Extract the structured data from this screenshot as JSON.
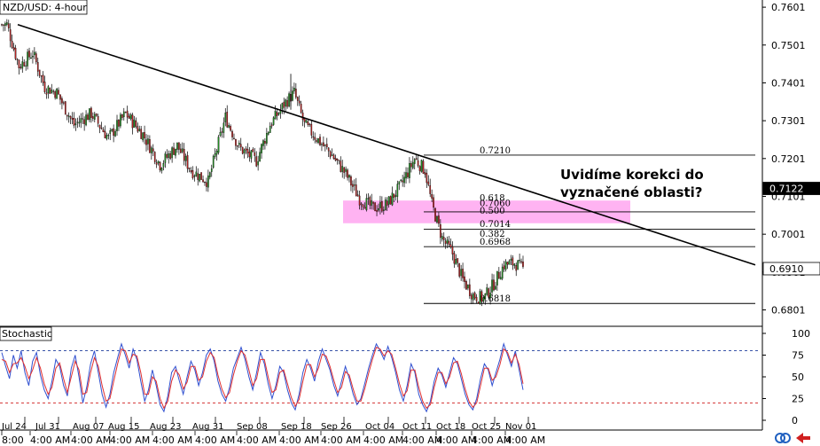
{
  "chart_data": [
    {
      "type": "candlestick",
      "title": "NZD/USD: 4-hour",
      "ylim": [
        0.676,
        0.762
      ],
      "price_ticks": [
        "0.7601",
        "0.7501",
        "0.7401",
        "0.7301",
        "0.7201",
        "0.7101",
        "0.7001",
        "0.6901",
        "0.6801"
      ],
      "current_price_labels": [
        {
          "value": 0.7122,
          "text": "0.7122",
          "bg": "#000000",
          "fg": "#ffffff"
        },
        {
          "value": 0.691,
          "text": "0.6910",
          "bg": "#ffffff",
          "fg": "#000000"
        }
      ],
      "date_labels": [
        "Jul 24",
        "Jul 31",
        "Aug 07",
        "Aug 15",
        "Aug 23",
        "Aug 31",
        "Sep 08",
        "Sep 18",
        "Sep 26",
        "Oct 04",
        "Oct 11",
        "Oct 18",
        "Oct 25",
        "Nov 01"
      ],
      "time_labels": [
        "8:00",
        "4:00 AM",
        "4:00 AM",
        "4:00 AM",
        "4:00 AM",
        "4:00 AM",
        "4:00 AM",
        "4:00 AM",
        "4:00 AM",
        "4:00 AM",
        "4:00 AM",
        "4:00 AM",
        "4:00 AM",
        "4:00 AM"
      ],
      "key_prices": [
        {
          "x": 0,
          "y": 0.7555,
          "kind": "low"
        },
        {
          "x": 3,
          "y": 0.7555,
          "kind": "high"
        },
        {
          "x": 10,
          "y": 0.7445
        },
        {
          "x": 18,
          "y": 0.748
        },
        {
          "x": 25,
          "y": 0.739
        },
        {
          "x": 32,
          "y": 0.7375
        },
        {
          "x": 42,
          "y": 0.729
        },
        {
          "x": 52,
          "y": 0.732
        },
        {
          "x": 62,
          "y": 0.7255
        },
        {
          "x": 72,
          "y": 0.732
        },
        {
          "x": 82,
          "y": 0.7265
        },
        {
          "x": 92,
          "y": 0.7185
        },
        {
          "x": 102,
          "y": 0.7235
        },
        {
          "x": 110,
          "y": 0.717
        },
        {
          "x": 120,
          "y": 0.714
        },
        {
          "x": 130,
          "y": 0.731
        },
        {
          "x": 138,
          "y": 0.723
        },
        {
          "x": 148,
          "y": 0.7195
        },
        {
          "x": 156,
          "y": 0.729
        },
        {
          "x": 165,
          "y": 0.735
        },
        {
          "x": 170,
          "y": 0.7375
        },
        {
          "x": 176,
          "y": 0.729
        },
        {
          "x": 184,
          "y": 0.725
        },
        {
          "x": 192,
          "y": 0.721
        },
        {
          "x": 200,
          "y": 0.716
        },
        {
          "x": 208,
          "y": 0.7095
        },
        {
          "x": 216,
          "y": 0.707
        },
        {
          "x": 224,
          "y": 0.708
        },
        {
          "x": 232,
          "y": 0.713
        },
        {
          "x": 240,
          "y": 0.72
        },
        {
          "x": 246,
          "y": 0.717
        },
        {
          "x": 250,
          "y": 0.708
        },
        {
          "x": 256,
          "y": 0.699
        },
        {
          "x": 262,
          "y": 0.695
        },
        {
          "x": 268,
          "y": 0.688
        },
        {
          "x": 274,
          "y": 0.684
        },
        {
          "x": 280,
          "y": 0.683
        },
        {
          "x": 286,
          "y": 0.687
        },
        {
          "x": 292,
          "y": 0.692
        },
        {
          "x": 298,
          "y": 0.6925
        },
        {
          "x": 303,
          "y": 0.691
        }
      ],
      "trendline": {
        "from": {
          "x": 0,
          "y": 0.7555
        },
        "to": {
          "x": 410,
          "y": 0.692
        }
      },
      "fibonacci": [
        {
          "label": "0.7210",
          "value": 0.721
        },
        {
          "label": "0.618",
          "value": 0.7085
        },
        {
          "label": "0.7060",
          "value": 0.707
        },
        {
          "label": "0.500",
          "value": 0.705
        },
        {
          "label": "0.7014",
          "value": 0.7015
        },
        {
          "label": "0.382",
          "value": 0.699
        },
        {
          "label": "0.6968",
          "value": 0.6968
        },
        {
          "label": "0.6818",
          "value": 0.6818
        }
      ],
      "zone": {
        "from": 0.703,
        "to": 0.709,
        "color": "#ff99ee"
      },
      "annotation": [
        "Uvidíme korekci do",
        "vyznačené oblasti?"
      ],
      "colors": {
        "bull": "#228b22",
        "bear": "#b22222",
        "wick": "#000000",
        "trend": "#000000"
      }
    },
    {
      "type": "line",
      "title": "Stochastic",
      "ylim": [
        0,
        100
      ],
      "ticks": [
        "100",
        "75",
        "50",
        "25",
        "0"
      ],
      "levels": [
        {
          "value": 80,
          "color": "#1e3c9c"
        },
        {
          "value": 20,
          "color": "#d02020"
        }
      ],
      "series": [
        {
          "color": "#3050d0",
          "values": [
            78,
            62,
            48,
            75,
            60,
            80,
            55,
            40,
            68,
            78,
            52,
            35,
            25,
            45,
            70,
            62,
            40,
            28,
            60,
            75,
            50,
            20,
            38,
            65,
            80,
            55,
            30,
            15,
            30,
            55,
            72,
            88,
            75,
            60,
            82,
            70,
            45,
            22,
            35,
            58,
            40,
            18,
            10,
            28,
            55,
            62,
            45,
            30,
            50,
            68,
            58,
            40,
            55,
            75,
            82,
            68,
            45,
            30,
            22,
            38,
            60,
            72,
            84,
            70,
            50,
            35,
            55,
            78,
            65,
            42,
            25,
            40,
            62,
            55,
            35,
            20,
            12,
            30,
            55,
            70,
            60,
            45,
            68,
            82,
            70,
            58,
            40,
            28,
            45,
            62,
            48,
            30,
            18,
            25,
            42,
            60,
            75,
            88,
            80,
            70,
            85,
            72,
            55,
            35,
            22,
            40,
            65,
            55,
            30,
            18,
            10,
            22,
            45,
            60,
            52,
            38,
            55,
            72,
            65,
            48,
            30,
            18,
            12,
            25,
            48,
            65,
            58,
            40,
            55,
            70,
            88,
            75,
            62,
            80,
            58,
            35
          ]
        },
        {
          "color": "#e03030",
          "values": [
            70,
            68,
            55,
            65,
            66,
            72,
            62,
            48,
            58,
            72,
            60,
            42,
            30,
            38,
            60,
            66,
            48,
            32,
            50,
            68,
            58,
            30,
            32,
            55,
            72,
            62,
            40,
            22,
            25,
            45,
            65,
            82,
            80,
            66,
            76,
            74,
            55,
            30,
            30,
            50,
            45,
            25,
            14,
            22,
            45,
            58,
            52,
            36,
            44,
            62,
            62,
            46,
            50,
            68,
            78,
            72,
            52,
            36,
            26,
            32,
            52,
            68,
            80,
            75,
            58,
            40,
            48,
            70,
            70,
            50,
            32,
            35,
            55,
            58,
            42,
            26,
            16,
            24,
            45,
            64,
            64,
            50,
            60,
            76,
            74,
            62,
            46,
            32,
            38,
            56,
            52,
            36,
            22,
            22,
            36,
            54,
            70,
            84,
            82,
            74,
            80,
            76,
            60,
            42,
            28,
            34,
            58,
            58,
            38,
            22,
            14,
            18,
            38,
            55,
            55,
            42,
            50,
            66,
            68,
            54,
            36,
            22,
            15,
            20,
            40,
            60,
            60,
            46,
            50,
            64,
            82,
            78,
            66,
            76,
            64,
            42
          ]
        }
      ]
    }
  ],
  "icons": {
    "refresh": "refresh-icon",
    "arrow": "arrow-icon"
  }
}
